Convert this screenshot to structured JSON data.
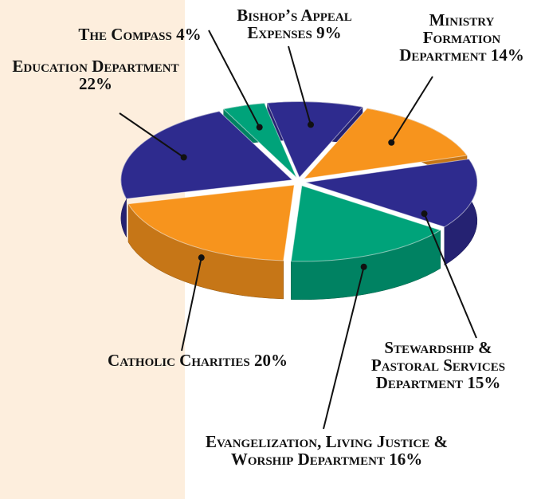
{
  "chart_data": {
    "type": "pie",
    "categories": [
      "Bishop’s Appeal Expenses",
      "Ministry Formation Department",
      "Stewardship & Pastoral Services Department",
      "Evangelization, Living Justice & Worship Department",
      "Catholic Charities",
      "Education Department",
      "The Compass"
    ],
    "values": [
      9,
      14,
      15,
      16,
      20,
      22,
      4
    ],
    "value_labels": [
      "9%",
      "14%",
      "15%",
      "16%",
      "20%",
      "22%",
      "4%"
    ],
    "colors": [
      "#2e2b8e",
      "#f7941d",
      "#2e2b8e",
      "#00a37a",
      "#f7941d",
      "#2e2b8e",
      "#00a37a"
    ]
  }
}
